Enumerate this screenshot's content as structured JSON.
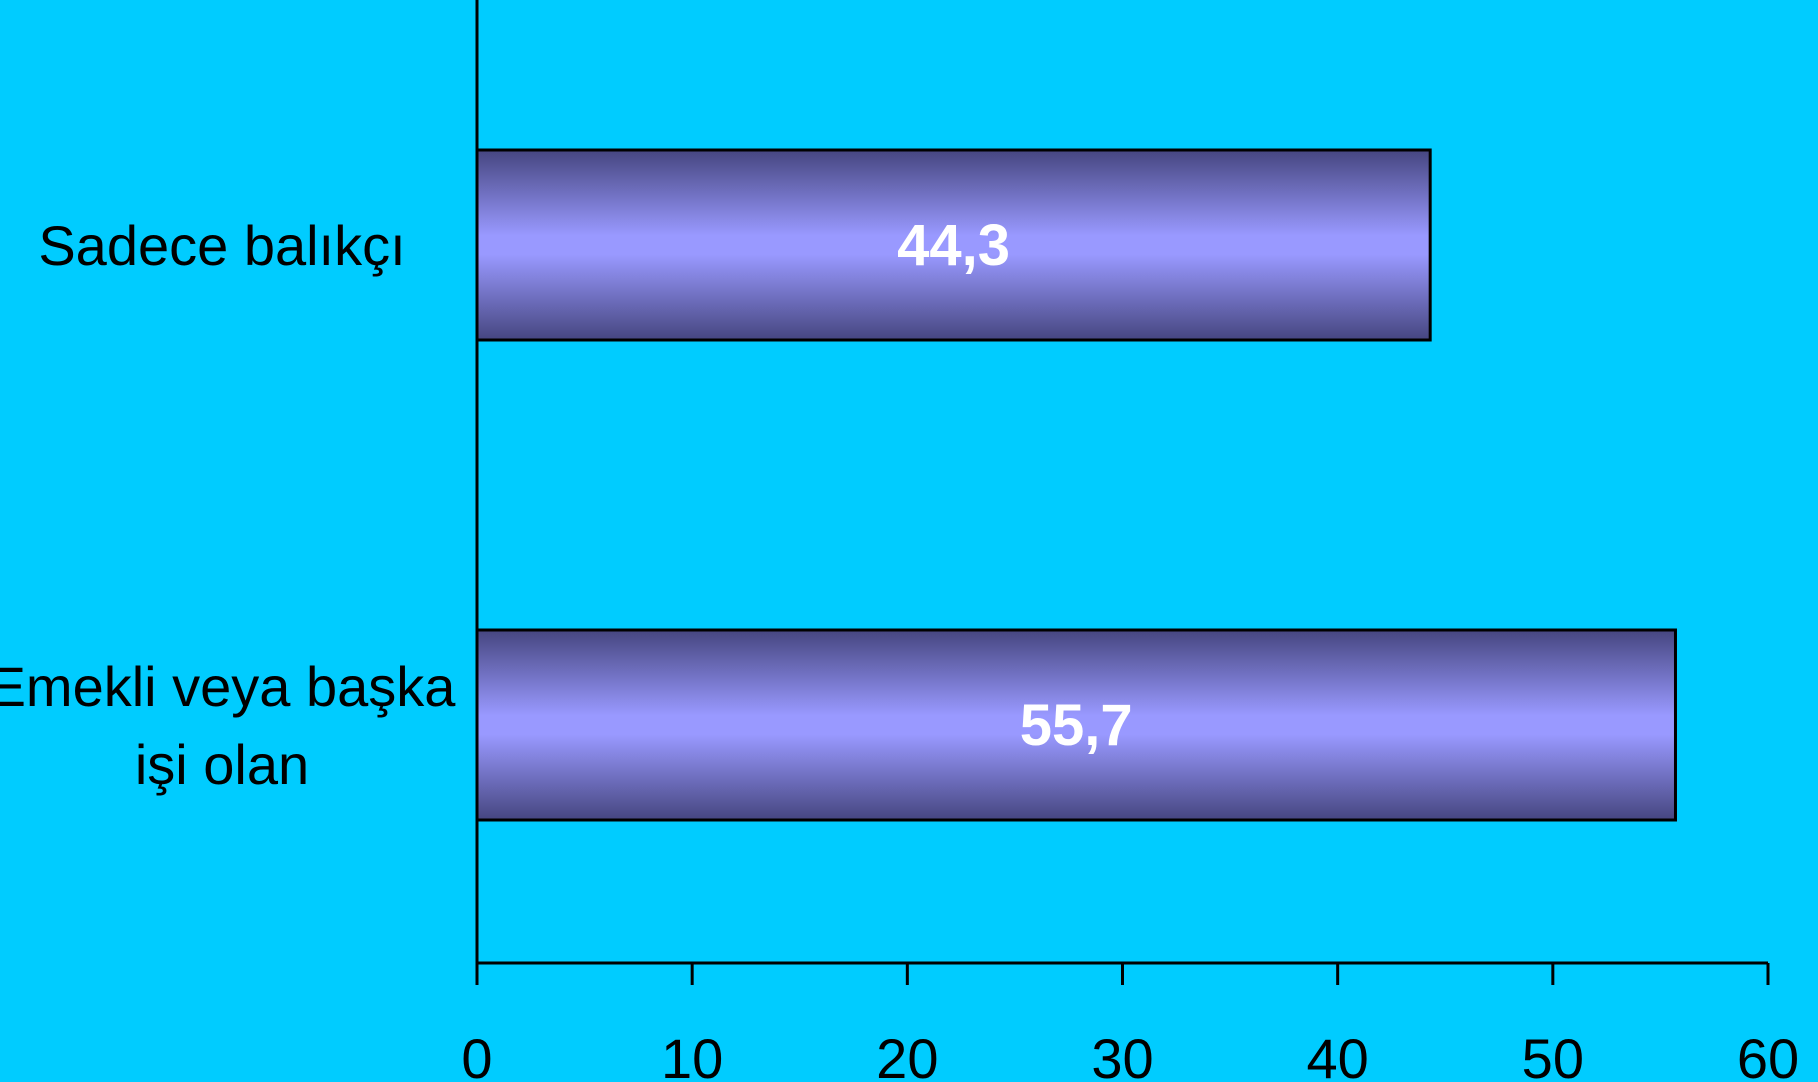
{
  "chart_data": {
    "type": "bar",
    "orientation": "horizontal",
    "categories": [
      [
        "Sadece balıkçı"
      ],
      [
        "Emekli veya başka",
        "işi olan"
      ]
    ],
    "values": [
      44.3,
      55.7
    ],
    "value_labels": [
      "44,3",
      "55,7"
    ],
    "xlim": [
      0,
      60
    ],
    "x_ticks": [
      0,
      10,
      20,
      30,
      40,
      50,
      60
    ],
    "x_tick_labels": [
      "0",
      "10",
      "20",
      "30",
      "40",
      "50",
      "60"
    ],
    "title": "",
    "xlabel": "",
    "ylabel": "",
    "grid": false,
    "legend": "none",
    "colors": {
      "background": "#00ccff",
      "bar_center": "#9999ff",
      "bar_edge": "#464680",
      "axis": "#000000",
      "value_text": "#ffffff",
      "label_text": "#000000"
    }
  }
}
